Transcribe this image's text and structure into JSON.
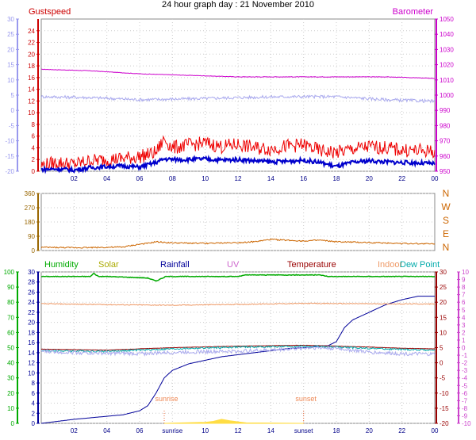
{
  "title": "24 hour graph day : 21 November 2010",
  "chart_data": [
    {
      "type": "line",
      "title": "24 hour graph day : 21 November 2010",
      "left_axis_label": "Gustspeed",
      "right_axis_label": "Barometer",
      "x_ticks": [
        "02",
        "04",
        "06",
        "08",
        "10",
        "12",
        "14",
        "16",
        "18",
        "20",
        "22",
        "00"
      ],
      "x_range_hours": [
        0,
        24
      ],
      "y_left_outer": {
        "range": [
          -20,
          30
        ],
        "ticks": [
          -20,
          -15,
          -10,
          -5,
          0,
          5,
          10,
          15,
          20,
          25,
          30
        ],
        "color": "#9999ee"
      },
      "y_left_inner": {
        "range": [
          0,
          26
        ],
        "ticks": [
          0,
          2,
          4,
          6,
          8,
          10,
          12,
          14,
          16,
          18,
          20,
          22,
          24
        ],
        "color": "#cc0000"
      },
      "y_right": {
        "range": [
          950,
          1050
        ],
        "ticks": [
          950,
          960,
          970,
          980,
          990,
          1000,
          1010,
          1020,
          1030,
          1040,
          1050
        ],
        "color": "#cc00cc"
      },
      "grid": true,
      "series": [
        {
          "color": "#cc00cc",
          "axis": "right",
          "x": [
            0,
            3,
            6,
            9,
            12,
            15,
            18,
            21,
            24
          ],
          "y": [
            1017,
            1016,
            1014,
            1013,
            1012,
            1012,
            1012,
            1012,
            1011
          ]
        },
        {
          "color": "#aaaaee",
          "axis": "left_outer",
          "x": [
            0,
            3,
            6,
            9,
            12,
            15,
            18,
            21,
            24
          ],
          "y": [
            4.5,
            4.2,
            3.5,
            3.8,
            4.2,
            4.5,
            4.5,
            3.5,
            3.0
          ]
        },
        {
          "color": "#ee0000",
          "axis": "left_inner",
          "x": [
            0,
            1,
            2,
            3,
            4,
            5,
            6,
            7,
            7.5,
            8,
            9,
            10,
            11,
            12,
            13,
            14,
            15,
            16,
            17,
            18,
            19,
            20,
            21,
            22,
            23,
            24
          ],
          "y": [
            1,
            1.5,
            1.2,
            1.8,
            2.0,
            2.2,
            2.5,
            3.2,
            5.5,
            4.0,
            4.5,
            4.8,
            4.2,
            4.6,
            4.0,
            3.8,
            4.3,
            4.5,
            3.5,
            3.2,
            3.8,
            4.2,
            4.0,
            3.6,
            3.5,
            3.4
          ]
        },
        {
          "color": "#0000cc",
          "axis": "left_inner",
          "x": [
            0,
            1,
            2,
            3,
            4,
            5,
            6,
            7,
            7.5,
            8,
            9,
            10,
            11,
            12,
            13,
            14,
            15,
            16,
            17,
            18,
            19,
            20,
            21,
            22,
            23,
            24
          ],
          "y": [
            0.3,
            0.4,
            0.2,
            0.6,
            0.8,
            0.9,
            0.7,
            1.5,
            2.1,
            2.0,
            2.0,
            2.1,
            1.9,
            2.0,
            1.8,
            1.6,
            1.7,
            1.9,
            1.5,
            0.8,
            1.5,
            1.8,
            1.6,
            1.5,
            1.4,
            1.3
          ]
        }
      ]
    },
    {
      "type": "line",
      "right_axis_labels": [
        "N",
        "W",
        "S",
        "E",
        "N"
      ],
      "x_ticks": [],
      "x_range_hours": [
        0,
        24
      ],
      "y_left": {
        "range": [
          0,
          360
        ],
        "ticks": [
          0,
          90,
          180,
          270,
          360
        ],
        "color": "#996600"
      },
      "grid": true,
      "series": [
        {
          "color": "#cc6600",
          "axis": "left",
          "x": [
            0,
            2,
            4,
            5,
            6,
            6.5,
            7,
            8,
            10,
            12,
            13,
            14,
            15,
            16,
            17,
            18,
            20,
            22,
            24
          ],
          "y": [
            20,
            18,
            20,
            22,
            40,
            45,
            55,
            48,
            45,
            50,
            55,
            70,
            65,
            60,
            65,
            55,
            50,
            45,
            42
          ]
        }
      ]
    },
    {
      "type": "line",
      "legend": [
        "Humidity",
        "Solar",
        "Rainfall",
        "UV",
        "Temperature",
        "Indoor",
        "Dew Point"
      ],
      "legend_colors": [
        "#00aa00",
        "#aaaa00",
        "#000099",
        "#cc66cc",
        "#990000",
        "#ee9966",
        "#00aaaa"
      ],
      "x_ticks": [
        "02",
        "04",
        "06",
        "sunrise",
        "10",
        "12",
        "14",
        "sunset",
        "18",
        "20",
        "22",
        "00"
      ],
      "x_range_hours": [
        0,
        24
      ],
      "annotations": [
        {
          "text": "sunrise",
          "x": 7.5
        },
        {
          "text": "sunset",
          "x": 16.0
        }
      ],
      "y_left_outer": {
        "range": [
          0,
          100
        ],
        "ticks": [
          0,
          10,
          20,
          30,
          40,
          50,
          60,
          70,
          80,
          90,
          100
        ],
        "color": "#00aa00"
      },
      "y_left_inner": {
        "range": [
          0,
          30
        ],
        "ticks": [
          0,
          2,
          4,
          6,
          8,
          10,
          12,
          14,
          16,
          18,
          20,
          22,
          24,
          26,
          28,
          30
        ],
        "color": "#000099"
      },
      "y_right_inner": {
        "range": [
          -20,
          30
        ],
        "ticks": [
          -20,
          -15,
          -10,
          -5,
          0,
          5,
          10,
          15,
          20,
          25,
          30
        ],
        "color": "#990000"
      },
      "y_right_outer": {
        "range": [
          -10,
          10
        ],
        "ticks": [
          -10,
          -9,
          -8,
          -7,
          -6,
          -5,
          -4,
          -3,
          -2,
          -1,
          0,
          1,
          2,
          3,
          4,
          5,
          6,
          7,
          8,
          9,
          10
        ],
        "color": "#cc44cc"
      },
      "grid": true,
      "series": [
        {
          "name": "Humidity",
          "color": "#00aa00",
          "axis": "left_outer",
          "x": [
            0,
            3,
            3.2,
            3.5,
            4,
            6.5,
            7,
            7.6,
            8,
            12,
            12.5,
            17,
            17.5,
            20,
            20.5,
            24
          ],
          "y": [
            97,
            97,
            99,
            97,
            97,
            96,
            94,
            97,
            97,
            97,
            98,
            98,
            97,
            97,
            97,
            97
          ]
        },
        {
          "name": "Rainfall",
          "color": "#000099",
          "axis": "left_inner",
          "x": [
            0,
            2,
            4,
            5,
            6,
            6.5,
            7,
            7.5,
            8,
            9,
            10,
            11,
            12,
            13,
            14,
            15,
            16,
            17,
            17.5,
            18,
            18.5,
            19,
            20,
            21,
            22,
            23,
            24
          ],
          "y": [
            0,
            0.8,
            1.4,
            1.7,
            2.5,
            3.5,
            6.0,
            9.0,
            10.5,
            11.8,
            12.5,
            13.2,
            13.6,
            14.0,
            14.4,
            14.8,
            15.0,
            15.3,
            15.4,
            16.2,
            19.0,
            20.5,
            22.0,
            23.5,
            24.5,
            25.2,
            25.2
          ]
        },
        {
          "name": "Temperature",
          "color": "#990000",
          "axis": "right_inner",
          "x": [
            0,
            4,
            8,
            12,
            16,
            18,
            20,
            22,
            24
          ],
          "y": [
            4.5,
            4.2,
            5.0,
            5.5,
            5.8,
            5.5,
            5.2,
            4.8,
            4.6
          ]
        },
        {
          "name": "Indoor",
          "color": "#ee9966",
          "axis": "right_inner",
          "x": [
            0,
            4,
            8,
            12,
            16,
            20,
            24
          ],
          "y": [
            19.5,
            19.2,
            19.0,
            19.3,
            19.6,
            19.5,
            19.4
          ]
        },
        {
          "name": "Dew Point",
          "color": "#00aaaa",
          "axis": "right_inner",
          "x": [
            0,
            4,
            8,
            12,
            16,
            18,
            20,
            22,
            24
          ],
          "y": [
            4.0,
            3.8,
            4.6,
            5.2,
            5.4,
            5.2,
            4.8,
            4.4,
            4.2
          ]
        },
        {
          "color": "#aaaaee",
          "axis": "right_inner",
          "x": [
            0,
            3,
            6,
            9,
            12,
            15,
            16.5,
            18,
            20,
            22,
            24
          ],
          "y": [
            3.8,
            3.2,
            3.0,
            3.6,
            3.8,
            4.5,
            5.0,
            4.8,
            3.5,
            3.0,
            2.8
          ]
        },
        {
          "name": "Solar",
          "color": "#ffdd44",
          "axis": "left_inner",
          "x": [
            7.5,
            10,
            10.5,
            11,
            11.5,
            12,
            12.5,
            16
          ],
          "y": [
            0,
            0.2,
            0.4,
            0.8,
            0.5,
            0.3,
            0.1,
            0
          ]
        }
      ]
    }
  ]
}
